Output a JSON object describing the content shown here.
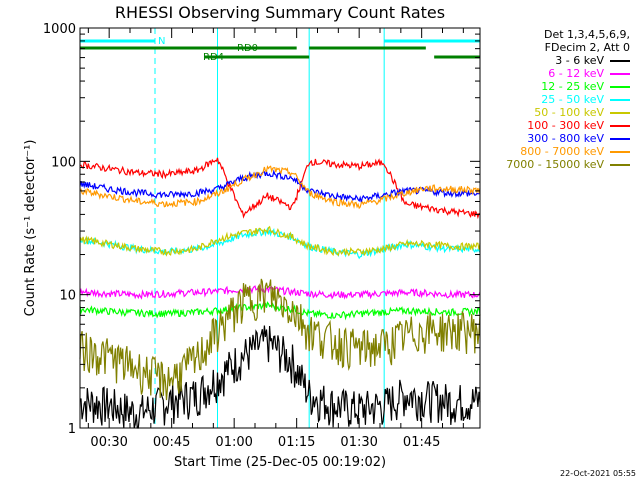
{
  "chart_data": {
    "type": "line",
    "title": "RHESSI Observing Summary Count Rates",
    "xlabel": "Start Time (25-Dec-05 00:19:02)",
    "ylabel": "Count Rate (s⁻¹ detector⁻¹)",
    "yscale": "log",
    "ylim": [
      1,
      1000
    ],
    "xlim_minutes": [
      23,
      119
    ],
    "x_ticks": [
      "00:30",
      "00:45",
      "01:00",
      "01:15",
      "01:30",
      "01:45"
    ],
    "y_ticks": [
      "1",
      "10",
      "100",
      "1000"
    ],
    "legend_header": [
      "Det 1,3,4,5,6,9,",
      "FDecim 2, Att 0"
    ],
    "timestamp": "22-Oct-2021 05:55",
    "flags": [
      {
        "label": "N",
        "color": "#00ffff",
        "segments": [
          [
            23,
            41
          ],
          [
            96,
            119
          ]
        ]
      },
      {
        "label": "RD0",
        "color": "#008000",
        "segments": [
          [
            23,
            75
          ],
          [
            78,
            106
          ]
        ]
      },
      {
        "label": "RD4",
        "color": "#008000",
        "segments": [
          [
            53,
            78
          ],
          [
            108,
            119
          ]
        ]
      }
    ],
    "vertical_markers_minutes": [
      23,
      41,
      56,
      78,
      96,
      119
    ],
    "x_sample_minutes": [
      23,
      30,
      37,
      44,
      51,
      56,
      62,
      68,
      74,
      78,
      84,
      90,
      96,
      101,
      106,
      112,
      119
    ],
    "series": [
      {
        "name": "3 - 6 keV",
        "color": "#000000",
        "values": [
          1.6,
          1.5,
          1.3,
          1.6,
          1.8,
          2.4,
          3.5,
          4.5,
          3.2,
          1.8,
          1.5,
          1.4,
          1.5,
          1.8,
          1.7,
          1.6,
          1.6
        ]
      },
      {
        "name": "6 - 12 keV",
        "color": "#ff00ff",
        "values": [
          10.5,
          10.2,
          10.0,
          10.2,
          10.4,
          10.6,
          11.0,
          11.0,
          10.5,
          10.2,
          10.0,
          10.0,
          10.2,
          10.4,
          10.3,
          10.0,
          10.0
        ]
      },
      {
        "name": "12 - 25 keV",
        "color": "#00ff00",
        "values": [
          7.8,
          7.5,
          7.3,
          7.2,
          7.4,
          7.6,
          8.0,
          8.3,
          7.8,
          7.2,
          7.0,
          7.2,
          7.4,
          7.6,
          7.5,
          7.4,
          7.5
        ]
      },
      {
        "name": "25 - 50 keV",
        "color": "#00ffff",
        "values": [
          26,
          24,
          22,
          21,
          22,
          24,
          28,
          30,
          27,
          23,
          21,
          20,
          22,
          24,
          23,
          22,
          22
        ]
      },
      {
        "name": "50 - 100 keV",
        "color": "#c8c800",
        "values": [
          26,
          24,
          22,
          21,
          22,
          26,
          29,
          31,
          27,
          23,
          21,
          21,
          22,
          24,
          24,
          23,
          23
        ]
      },
      {
        "name": "100 - 300 keV",
        "color": "#ff0000",
        "values": [
          95,
          88,
          82,
          80,
          85,
          105,
          40,
          55,
          45,
          100,
          95,
          92,
          98,
          48,
          45,
          42,
          40
        ]
      },
      {
        "name": "300 - 800 keV",
        "color": "#0000ff",
        "values": [
          68,
          62,
          58,
          56,
          58,
          62,
          75,
          82,
          75,
          60,
          55,
          52,
          56,
          60,
          60,
          58,
          57
        ]
      },
      {
        "name": "800 - 7000 keV",
        "color": "#ff9900",
        "values": [
          60,
          55,
          50,
          48,
          50,
          57,
          72,
          88,
          82,
          58,
          50,
          47,
          52,
          58,
          63,
          62,
          61
        ]
      },
      {
        "name": "7000 - 15000 keV",
        "color": "#808000",
        "values": [
          4.0,
          3.5,
          2.8,
          2.3,
          3.3,
          5.5,
          9.0,
          10.5,
          8.0,
          5.5,
          4.5,
          4.0,
          4.2,
          5.0,
          5.5,
          5.5,
          5.5
        ]
      }
    ]
  }
}
